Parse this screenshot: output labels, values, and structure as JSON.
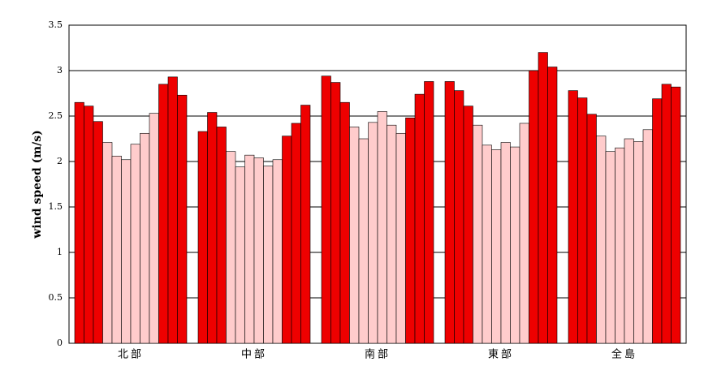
{
  "chart_data": {
    "type": "bar",
    "y_label": "wind speed (m/s)",
    "categories": [
      "北部",
      "中部",
      "南部",
      "東部",
      "全島"
    ],
    "series": [
      {
        "color": "#ee0000",
        "values": [
          2.65,
          2.33,
          2.94,
          2.88,
          2.78
        ]
      },
      {
        "color": "#ee0000",
        "values": [
          2.61,
          2.54,
          2.87,
          2.78,
          2.7
        ]
      },
      {
        "color": "#ee0000",
        "values": [
          2.44,
          2.38,
          2.65,
          2.61,
          2.52
        ]
      },
      {
        "color": "#ffcccc",
        "values": [
          2.21,
          2.11,
          2.38,
          2.4,
          2.28
        ]
      },
      {
        "color": "#ffcccc",
        "values": [
          2.06,
          1.94,
          2.25,
          2.18,
          2.11
        ]
      },
      {
        "color": "#ffcccc",
        "values": [
          2.02,
          2.07,
          2.43,
          2.13,
          2.15
        ]
      },
      {
        "color": "#ffcccc",
        "values": [
          2.19,
          2.04,
          2.55,
          2.21,
          2.25
        ]
      },
      {
        "color": "#ffcccc",
        "values": [
          2.31,
          1.95,
          2.4,
          2.16,
          2.22
        ]
      },
      {
        "color": "#ffcccc",
        "values": [
          2.53,
          2.02,
          2.31,
          2.42,
          2.35
        ]
      },
      {
        "color": "#ee0000",
        "values": [
          2.85,
          2.28,
          2.48,
          3.0,
          2.69
        ]
      },
      {
        "color": "#ee0000",
        "values": [
          2.93,
          2.42,
          2.74,
          3.2,
          2.85
        ]
      },
      {
        "color": "#ee0000",
        "values": [
          2.73,
          2.62,
          2.88,
          3.04,
          2.82
        ]
      }
    ],
    "ylim": [
      0,
      3.5
    ],
    "yticks": [
      0,
      0.5,
      1,
      1.5,
      2,
      2.5,
      3,
      3.5
    ],
    "grid": true
  }
}
